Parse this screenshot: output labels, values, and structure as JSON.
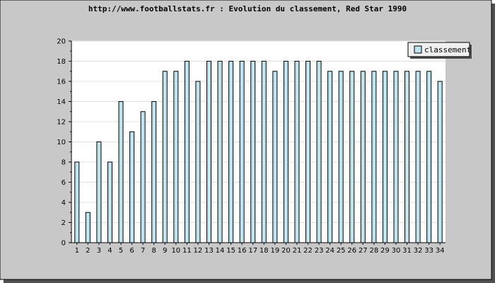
{
  "chart_data": {
    "type": "bar",
    "title": "http://www.footballstats.fr : Evolution du classement, Red Star 1990",
    "xlabel": "",
    "ylabel": "",
    "categories": [
      "1",
      "2",
      "3",
      "4",
      "5",
      "6",
      "7",
      "8",
      "9",
      "10",
      "11",
      "12",
      "13",
      "14",
      "15",
      "16",
      "17",
      "18",
      "19",
      "20",
      "21",
      "22",
      "23",
      "24",
      "25",
      "26",
      "27",
      "28",
      "29",
      "30",
      "31",
      "32",
      "33",
      "34"
    ],
    "series": [
      {
        "name": "classement",
        "values": [
          8,
          3,
          10,
          8,
          14,
          11,
          13,
          14,
          17,
          17,
          18,
          16,
          18,
          18,
          18,
          18,
          18,
          18,
          17,
          18,
          18,
          18,
          18,
          17,
          17,
          17,
          17,
          17,
          17,
          17,
          17,
          17,
          17,
          16
        ]
      }
    ],
    "ylim": [
      0,
      20
    ],
    "yticks": [
      "0",
      "2",
      "4",
      "6",
      "8",
      "10",
      "12",
      "14",
      "16",
      "18",
      "20"
    ],
    "grid": "horizontal",
    "legend_position": "top-right",
    "colors": {
      "frame_background": "#c8c8c8",
      "plot_background": "#ffffff",
      "bar_fill": "#bfe4ee",
      "bar_stroke": "#000000",
      "grid": "#e0e0e0",
      "shadow": "#505050"
    }
  }
}
